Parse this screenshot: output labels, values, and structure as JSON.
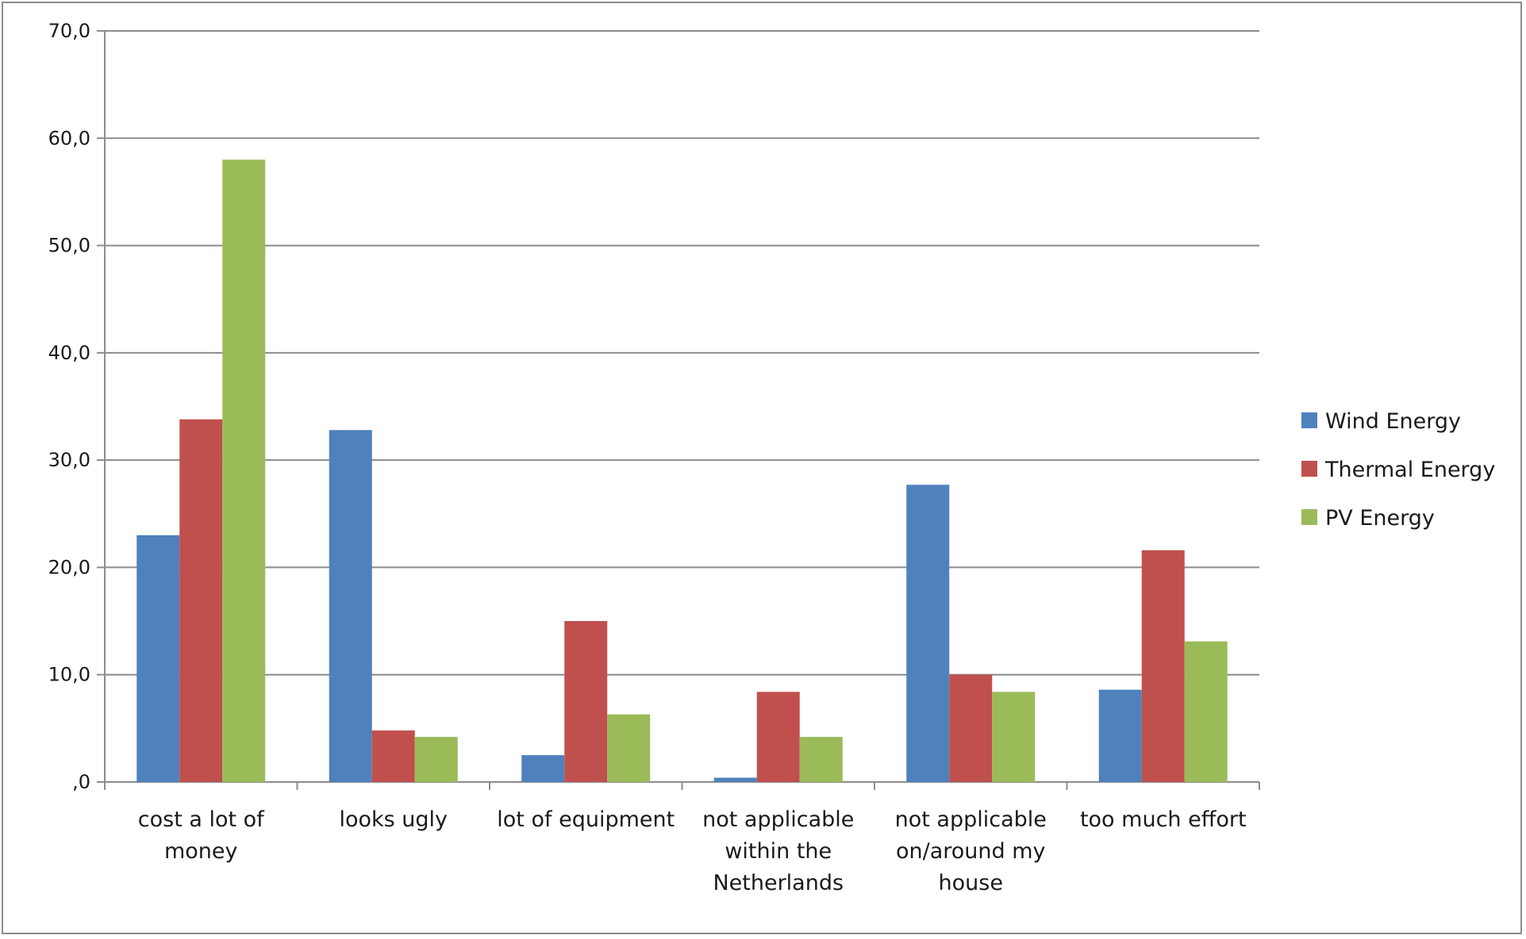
{
  "chart_data": {
    "type": "bar",
    "title": "",
    "xlabel": "",
    "ylabel": "",
    "ylim": [
      0,
      70
    ],
    "y_ticks": [
      0,
      10,
      20,
      30,
      40,
      50,
      60,
      70
    ],
    "y_tick_labels": [
      ",0",
      "10,0",
      "20,0",
      "30,0",
      "40,0",
      "50,0",
      "60,0",
      "70,0"
    ],
    "grid": true,
    "legend_position": "right",
    "categories": [
      [
        "cost a lot of",
        "money"
      ],
      [
        "looks ugly"
      ],
      [
        "lot of equipment"
      ],
      [
        "not applicable",
        "within the",
        "Netherlands"
      ],
      [
        "not applicable",
        "on/around my",
        "house"
      ],
      [
        "too much effort"
      ]
    ],
    "series": [
      {
        "name": "Wind Energy",
        "color": "#4f81bd",
        "values": [
          23.0,
          32.8,
          2.5,
          0.4,
          27.7,
          8.6
        ]
      },
      {
        "name": "Thermal Energy",
        "color": "#c0504d",
        "values": [
          33.8,
          4.8,
          15.0,
          8.4,
          10.0,
          21.6
        ]
      },
      {
        "name": "PV Energy",
        "color": "#9bbb59",
        "values": [
          58.0,
          4.2,
          6.3,
          4.2,
          8.4,
          13.1
        ]
      }
    ]
  }
}
